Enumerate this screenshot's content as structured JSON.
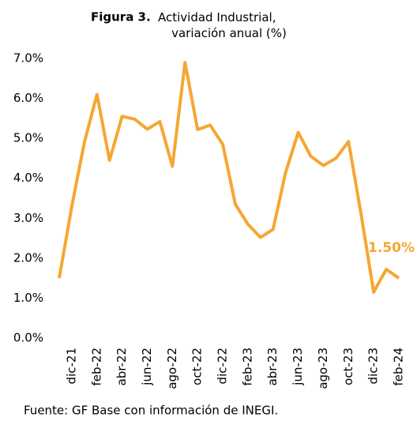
{
  "chart_data": {
    "type": "line",
    "title_label": "Figura 3.",
    "title": "Actividad Industrial, variación anual (%)",
    "source": "Fuente: GF Base con información de INEGI.",
    "categories": [
      null,
      "dic-21",
      null,
      "feb-22",
      null,
      "abr-22",
      null,
      "jun-22",
      null,
      "ago-22",
      null,
      "oct-22",
      null,
      "dic-22",
      null,
      "feb-23",
      null,
      "abr-23",
      null,
      "jun-23",
      null,
      "ago-23",
      null,
      "oct-23",
      null,
      "dic-23",
      null,
      "feb-24"
    ],
    "series": [
      {
        "name": "Actividad Industrial",
        "color": "#f5a733",
        "values": [
          1.5,
          3.3,
          4.9,
          6.1,
          4.45,
          5.55,
          5.48,
          5.23,
          5.42,
          4.3,
          6.9,
          5.22,
          5.33,
          4.85,
          3.35,
          2.85,
          2.52,
          2.72,
          4.15,
          5.15,
          4.55,
          4.32,
          4.5,
          4.92,
          3.1,
          1.15,
          1.72,
          1.5
        ],
        "value_labels": [
          null,
          null,
          null,
          null,
          null,
          null,
          null,
          null,
          null,
          null,
          null,
          null,
          null,
          null,
          null,
          null,
          null,
          null,
          null,
          null,
          null,
          null,
          null,
          null,
          null,
          null,
          null,
          "1.50%"
        ]
      }
    ],
    "ylim": [
      0,
      7
    ],
    "yticks": [
      {
        "value": 0,
        "label": "0.0%"
      },
      {
        "value": 1,
        "label": "1.0%"
      },
      {
        "value": 2,
        "label": "2.0%"
      },
      {
        "value": 3,
        "label": "3.0%"
      },
      {
        "value": 4,
        "label": "4.0%"
      },
      {
        "value": 5,
        "label": "5.0%"
      },
      {
        "value": 6,
        "label": "6.0%"
      },
      {
        "value": 7,
        "label": "7.0%"
      }
    ],
    "grid": false
  }
}
